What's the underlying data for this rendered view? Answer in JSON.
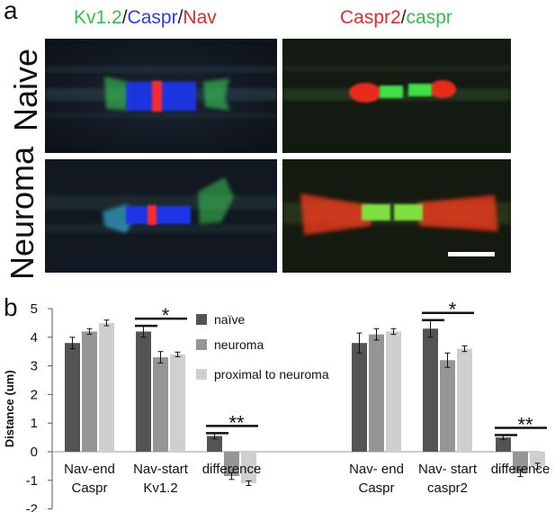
{
  "panel_a": {
    "letter": "a",
    "left_title": {
      "parts": [
        {
          "text": "Kv1.2",
          "color": "#2fbf4a"
        },
        {
          "text": "/",
          "color": "#222222"
        },
        {
          "text": "Caspr",
          "color": "#2a3fd8"
        },
        {
          "text": "/",
          "color": "#222222"
        },
        {
          "text": "Nav",
          "color": "#e02a2a"
        }
      ]
    },
    "right_title": {
      "parts": [
        {
          "text": "Caspr2",
          "color": "#e02a2a"
        },
        {
          "text": "/",
          "color": "#222222"
        },
        {
          "text": "caspr",
          "color": "#2fbf4a"
        }
      ]
    },
    "row_labels": [
      "Naive",
      "Neuroma"
    ]
  },
  "panel_b": {
    "letter": "b",
    "chart_data": {
      "type": "bar",
      "ylabel": "Distance (um)",
      "ylim": [
        -2,
        5
      ],
      "yticks": [
        5,
        4,
        3,
        2,
        1,
        0,
        -1,
        -2
      ],
      "legend_placement": "top-center",
      "series": [
        {
          "name": "naïve",
          "color": "#545454"
        },
        {
          "name": "neuroma",
          "color": "#959595"
        },
        {
          "name": "proximal to neuroma",
          "color": "#cfcfcf"
        }
      ],
      "groups": [
        {
          "label_lines": [
            "Nav-end",
            "Caspr"
          ],
          "values": [
            3.8,
            4.2,
            4.5
          ],
          "errors": [
            0.2,
            0.1,
            0.1
          ]
        },
        {
          "label_lines": [
            "Nav-start",
            "Kv1.2"
          ],
          "values": [
            4.2,
            3.3,
            3.4
          ],
          "errors": [
            0.2,
            0.2,
            0.08
          ],
          "significance": "*"
        },
        {
          "label_lines": [
            "difference"
          ],
          "values": [
            0.55,
            -0.85,
            -1.1
          ],
          "errors": [
            0.1,
            0.12,
            0.08
          ],
          "significance": "**"
        },
        {
          "label_lines": [
            "Nav- end",
            "Caspr"
          ],
          "values": [
            3.8,
            4.1,
            4.2
          ],
          "errors": [
            0.35,
            0.2,
            0.1
          ]
        },
        {
          "label_lines": [
            "Nav- start",
            "caspr2"
          ],
          "values": [
            4.3,
            3.2,
            3.6
          ],
          "errors": [
            0.3,
            0.25,
            0.1
          ],
          "significance": "*"
        },
        {
          "label_lines": [
            "difference"
          ],
          "values": [
            0.5,
            -0.75,
            -0.5
          ],
          "errors": [
            0.08,
            0.12,
            0.1
          ],
          "significance": "**"
        }
      ]
    }
  }
}
